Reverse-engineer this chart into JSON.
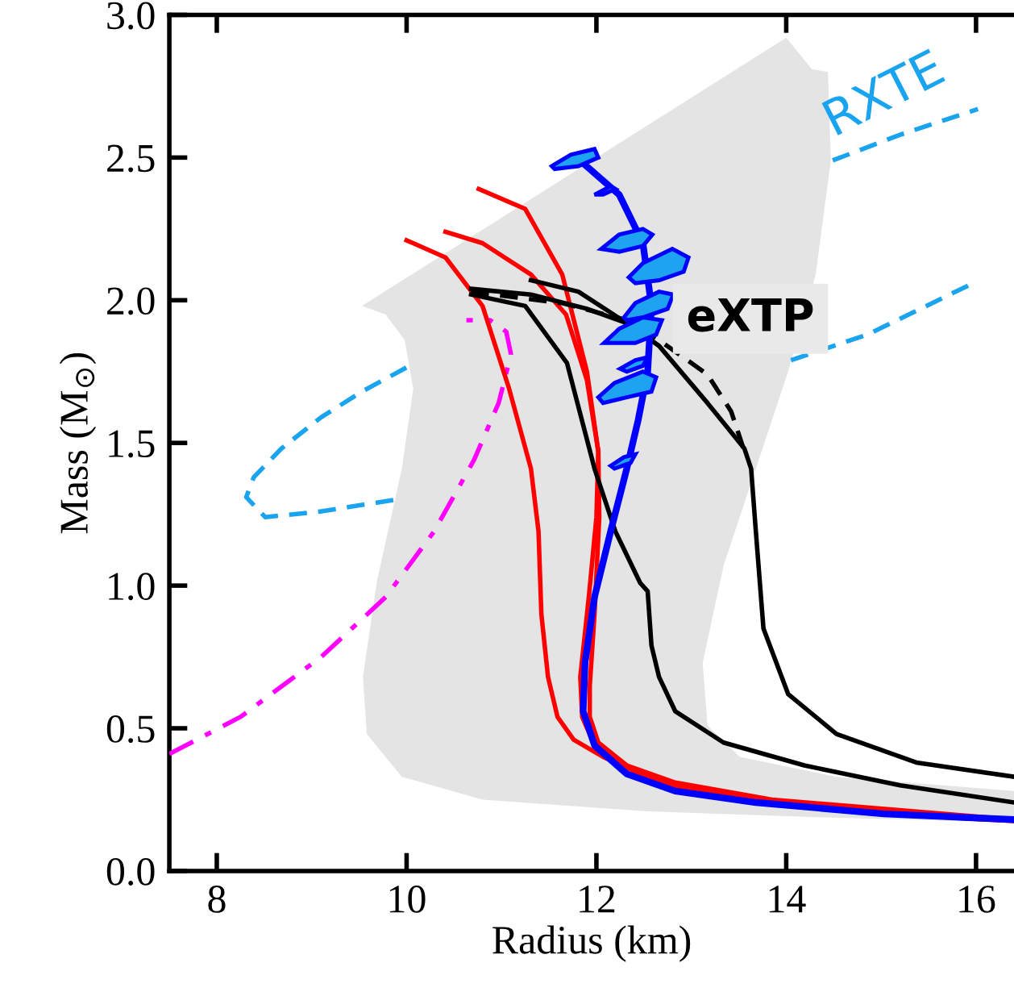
{
  "chart_data": {
    "type": "line",
    "xlabel": "Radius (km)",
    "ylabel": "Mass (M$_{⊙}$)",
    "xlim": [
      7.5,
      16.4
    ],
    "xticks": [
      8,
      10,
      12,
      14,
      16
    ],
    "ylim": [
      0,
      3.0
    ],
    "yticks": [
      {
        "value": 0,
        "label": "0.0"
      },
      {
        "value": 0.5,
        "label": "0.5"
      },
      {
        "value": 1.0,
        "label": "1.0"
      },
      {
        "value": 1.5,
        "label": "1.5"
      },
      {
        "value": 2.0,
        "label": "2.0"
      },
      {
        "value": 2.5,
        "label": "2.5"
      },
      {
        "value": 3.0,
        "label": "3.0"
      }
    ],
    "grid": false,
    "legend": false,
    "series": [
      {
        "type": "area",
        "color": "#e4e4e4",
        "x": [
          14.0,
          14.27,
          14.44,
          14.47,
          14.31,
          14.02,
          13.68,
          13.34,
          13.12,
          13.17,
          13.51,
          14.53,
          16.4,
          16.4,
          14.19,
          12.49,
          10.8,
          9.95,
          9.58,
          9.54,
          9.69,
          9.95,
          10.07,
          9.98,
          9.78,
          9.53
        ],
        "values": [
          2.92,
          2.81,
          2.8,
          2.49,
          2.09,
          1.75,
          1.41,
          1.07,
          0.73,
          0.51,
          0.4,
          0.33,
          0.28,
          0.17,
          0.19,
          0.21,
          0.25,
          0.33,
          0.48,
          0.68,
          1.02,
          1.41,
          1.69,
          1.86,
          1.95,
          1.98
        ]
      },
      {
        "color": "#1aa3ef",
        "line_style": "dashed",
        "x": [
          9.86,
          9.1,
          8.51,
          8.31,
          8.39,
          8.68,
          9.1,
          9.53,
          10.03,
          null,
          14.05,
          14.86,
          15.97,
          null,
          14.49,
          15.2,
          16.02
        ],
        "values": [
          1.3,
          1.26,
          1.24,
          1.31,
          1.38,
          1.48,
          1.59,
          1.68,
          1.77,
          null,
          1.79,
          1.88,
          2.06,
          null,
          2.49,
          2.58,
          2.67
        ]
      },
      {
        "color": "#ff00ff",
        "line_style": "dashdot",
        "x": [
          7.5,
          8.25,
          9.1,
          9.78,
          10.29,
          10.71,
          10.97,
          11.1,
          11.05,
          10.88,
          10.63
        ],
        "values": [
          0.41,
          0.54,
          0.75,
          0.96,
          1.19,
          1.44,
          1.64,
          1.81,
          1.89,
          1.93,
          1.93
        ]
      },
      {
        "color": "#ff0000",
        "line_style": "solid",
        "x": [
          10.0,
          10.41,
          10.8,
          11.08,
          11.31,
          11.39,
          11.42,
          11.49,
          11.59,
          11.76,
          12.07,
          12.66,
          13.68,
          15.03,
          16.4
        ],
        "values": [
          2.21,
          2.15,
          1.98,
          1.69,
          1.41,
          1.19,
          0.9,
          0.68,
          0.54,
          0.46,
          0.4,
          0.31,
          0.24,
          0.2,
          0.175
        ]
      },
      {
        "color": "#ff0000",
        "line_style": "solid",
        "x": [
          10.41,
          10.8,
          11.31,
          11.68,
          11.9,
          12.02,
          12.03,
          11.98,
          11.93,
          11.93,
          12.02,
          12.32,
          12.83,
          13.85,
          16.4
        ],
        "values": [
          2.24,
          2.2,
          2.09,
          1.95,
          1.72,
          1.47,
          1.24,
          0.9,
          0.65,
          0.54,
          0.45,
          0.37,
          0.31,
          0.25,
          0.18
        ]
      },
      {
        "color": "#ff0000",
        "line_style": "solid",
        "x": [
          10.76,
          11.25,
          11.64,
          11.9,
          12.02,
          12.0,
          11.92,
          11.83,
          11.85,
          11.98,
          12.41,
          13.0,
          14.19,
          16.4
        ],
        "values": [
          2.39,
          2.32,
          2.09,
          1.75,
          1.47,
          1.24,
          0.96,
          0.68,
          0.54,
          0.44,
          0.35,
          0.28,
          0.23,
          0.18
        ]
      },
      {
        "color": "#000000",
        "line_style": "solid",
        "x": [
          10.68,
          11.25,
          11.69,
          11.98,
          12.2,
          12.46,
          12.54,
          12.58,
          12.66,
          12.83,
          13.34,
          14.19,
          15.2,
          16.4
        ],
        "values": [
          2.02,
          1.98,
          1.78,
          1.41,
          1.19,
          1.01,
          0.98,
          0.79,
          0.68,
          0.56,
          0.45,
          0.37,
          0.3,
          0.24
        ]
      },
      {
        "color": "#000000",
        "line_style": "solid",
        "x": [
          10.68,
          11.31,
          11.9,
          12.32,
          12.66,
          13.17,
          13.56,
          13.63,
          13.68,
          13.76,
          14.02,
          14.53,
          15.37,
          16.4
        ],
        "values": [
          2.04,
          2.02,
          1.97,
          1.92,
          1.84,
          1.64,
          1.48,
          1.41,
          1.19,
          0.85,
          0.62,
          0.48,
          0.38,
          0.33
        ]
      },
      {
        "color": "#000000",
        "line_style": "solid",
        "x": [
          11.31,
          11.81,
          12.32
        ],
        "values": [
          2.07,
          2.03,
          1.92
        ]
      },
      {
        "color": "#000000",
        "line_style": "dashed",
        "x": [
          10.68,
          11.64,
          12.32,
          12.66,
          13.17,
          13.42,
          13.56
        ],
        "values": [
          2.03,
          1.99,
          1.93,
          1.86,
          1.74,
          1.61,
          1.47
        ]
      },
      {
        "color": "#0000ff",
        "line_style": "solid",
        "x": [
          11.86,
          12.24,
          12.49,
          12.58,
          12.54,
          12.44,
          12.32,
          12.15,
          11.98,
          11.88,
          11.86,
          11.98,
          12.32,
          12.83,
          13.68,
          15.03,
          16.4
        ],
        "values": [
          2.48,
          2.37,
          2.2,
          1.98,
          1.75,
          1.58,
          1.41,
          1.19,
          0.96,
          0.73,
          0.56,
          0.44,
          0.34,
          0.28,
          0.24,
          0.2,
          0.18
        ]
      },
      {
        "type": "area",
        "color": "#1ea3f0",
        "x": [
          11.53,
          11.73,
          11.98,
          12.02,
          11.81,
          11.56,
          null,
          11.98,
          12.15,
          12.2,
          12.07,
          null,
          12.05,
          12.24,
          12.49,
          12.59,
          12.49,
          12.24,
          null,
          12.34,
          12.49,
          12.8,
          12.97,
          12.92,
          12.66,
          12.41,
          null,
          12.29,
          12.41,
          12.66,
          12.81,
          12.75,
          12.49,
          12.32,
          null,
          12.08,
          12.24,
          12.49,
          12.69,
          12.63,
          12.41,
          12.15,
          null,
          12.25,
          12.41,
          12.54,
          12.49,
          12.32,
          null,
          12.02,
          12.19,
          12.49,
          12.63,
          12.58,
          12.32,
          12.07,
          null,
          12.15,
          12.29,
          12.41,
          12.36,
          12.19
        ],
        "values": [
          2.47,
          2.51,
          2.53,
          2.5,
          2.47,
          2.46,
          null,
          2.37,
          2.4,
          2.39,
          2.37,
          null,
          2.18,
          2.23,
          2.25,
          2.23,
          2.19,
          2.17,
          null,
          2.08,
          2.13,
          2.18,
          2.15,
          2.1,
          2.07,
          2.06,
          null,
          1.94,
          1.99,
          2.03,
          2.02,
          1.97,
          1.94,
          1.93,
          null,
          1.85,
          1.9,
          1.94,
          1.93,
          1.88,
          1.85,
          1.85,
          null,
          1.76,
          1.79,
          1.8,
          1.77,
          1.75,
          null,
          1.66,
          1.71,
          1.75,
          1.73,
          1.68,
          1.66,
          1.64,
          null,
          1.42,
          1.45,
          1.46,
          1.43,
          1.41
        ]
      }
    ],
    "annotations": [
      "RXTE",
      "eXTP"
    ]
  }
}
